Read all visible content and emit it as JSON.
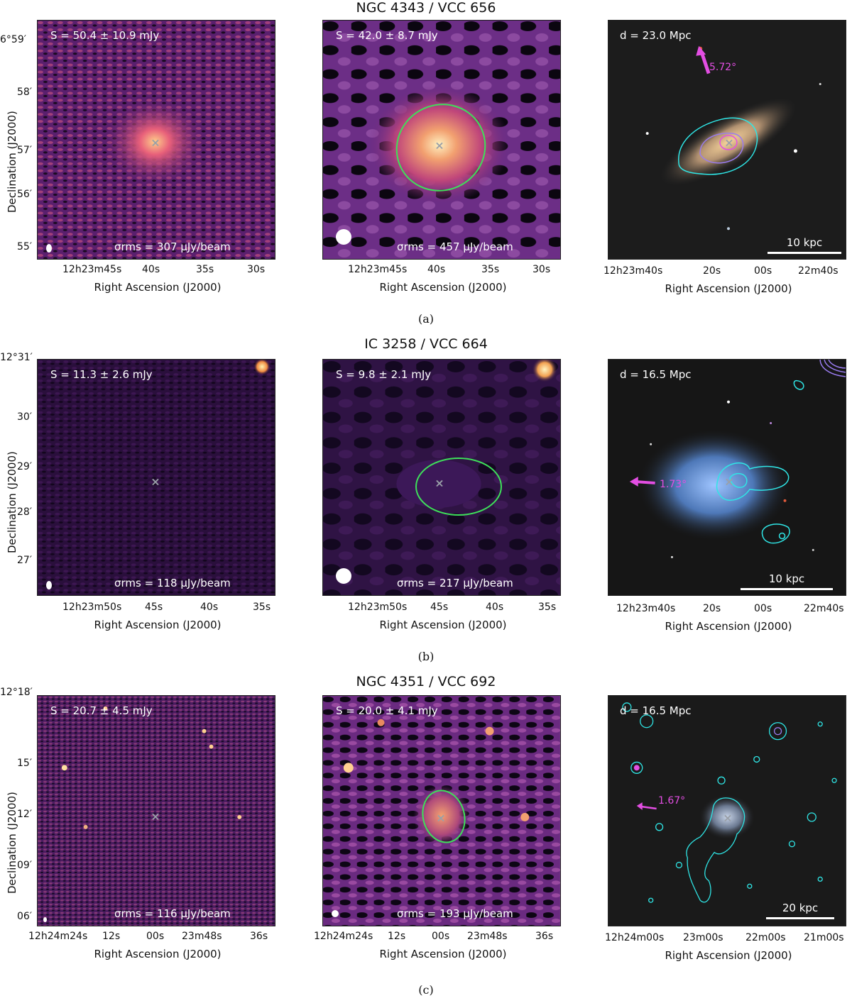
{
  "rows": [
    {
      "title": "NGC 4343 / VCC 656",
      "caption": "(a)",
      "panel1": {
        "flux": "S = 50.4 ± 10.9 mJy",
        "rms": "σrms = 307 μJy/beam",
        "ra_ticks": [
          "12h23m45s",
          "40s",
          "35s",
          "30s"
        ],
        "dec_ticks": [
          "6°59′",
          "58′",
          "57′",
          "56′",
          "55′"
        ]
      },
      "panel2": {
        "flux": "S = 42.0 ± 8.7 mJy",
        "rms": "σrms = 457 μJy/beam",
        "ra_ticks": [
          "12h23m45s",
          "40s",
          "35s",
          "30s"
        ]
      },
      "panel3": {
        "distance": "d = 23.0 Mpc",
        "angle": "5.72°",
        "scale": "10 kpc",
        "ra_ticks": [
          "12h23m40s",
          "20s",
          "00s",
          "22m40s"
        ]
      }
    },
    {
      "title": "IC 3258 / VCC 664",
      "caption": "(b)",
      "panel1": {
        "flux": "S = 11.3 ± 2.6 mJy",
        "rms": "σrms = 118 μJy/beam",
        "ra_ticks": [
          "12h23m50s",
          "45s",
          "40s",
          "35s"
        ],
        "dec_ticks": [
          "12°31′",
          "30′",
          "29′",
          "28′",
          "27′"
        ]
      },
      "panel2": {
        "flux": "S = 9.8 ± 2.1 mJy",
        "rms": "σrms = 217 μJy/beam",
        "ra_ticks": [
          "12h23m50s",
          "45s",
          "40s",
          "35s"
        ]
      },
      "panel3": {
        "distance": "d = 16.5 Mpc",
        "angle": "1.73°",
        "scale": "10 kpc",
        "ra_ticks": [
          "12h23m40s",
          "20s",
          "00s",
          "22m40s"
        ]
      }
    },
    {
      "title": "NGC 4351 / VCC 692",
      "caption": "(c)",
      "panel1": {
        "flux": "S = 20.7 ± 4.5 mJy",
        "rms": "σrms = 116 μJy/beam",
        "ra_ticks": [
          "12h24m24s",
          "12s",
          "00s",
          "23m48s",
          "36s"
        ],
        "dec_ticks": [
          "12°18′",
          "15′",
          "12′",
          "09′",
          "06′"
        ]
      },
      "panel2": {
        "flux": "S = 20.0 ± 4.1 mJy",
        "rms": "σrms = 193 μJy/beam",
        "ra_ticks": [
          "12h24m24s",
          "12s",
          "00s",
          "23m48s",
          "36s"
        ]
      },
      "panel3": {
        "distance": "d = 16.5 Mpc",
        "angle": "1.67°",
        "scale": "20 kpc",
        "ra_ticks": [
          "12h24m00s",
          "23m00s",
          "22m00s",
          "21m00s"
        ]
      }
    }
  ],
  "axis_labels": {
    "x": "Right Ascension (J2000)",
    "y": "Declination (J2000)"
  },
  "colors": {
    "ellipse": "#3ee05a",
    "contour": "#2fe6e6",
    "arrow": "#e34ee3"
  }
}
